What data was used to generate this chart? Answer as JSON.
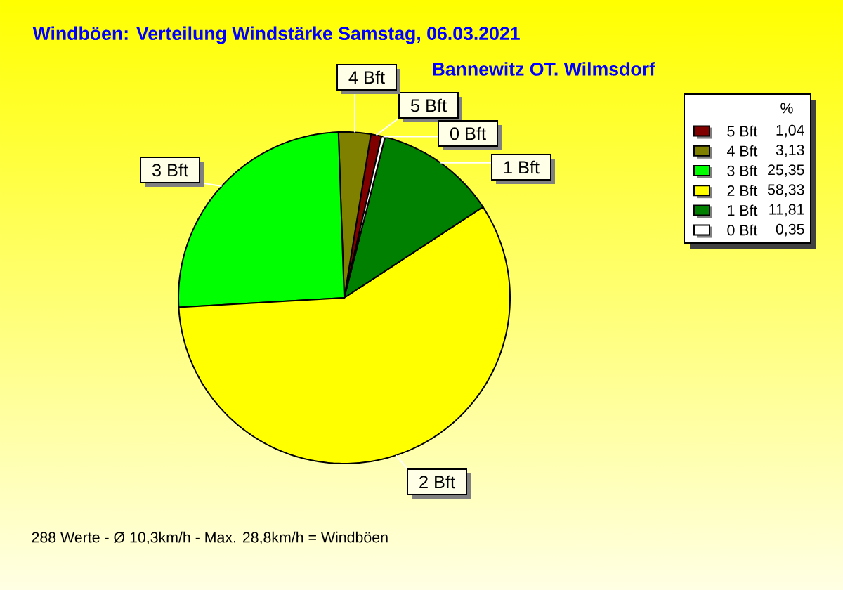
{
  "chart_data": {
    "type": "pie",
    "title": "Windböen: Verteilung Windstärke Samstag, 06.03.2021",
    "subtitle": "Bannewitz OT. Wilmsdorf",
    "legend_title": "%",
    "categories": [
      "5 Bft",
      "4 Bft",
      "3 Bft",
      "2 Bft",
      "1 Bft",
      "0 Bft"
    ],
    "values": [
      1.04,
      3.13,
      25.35,
      58.33,
      11.81,
      0.35
    ],
    "colors": [
      "#800000",
      "#808000",
      "#00ff00",
      "#ffff00",
      "#008000",
      "#ffffff"
    ],
    "value_labels": [
      "1,04",
      "3,13",
      "25,35",
      "58,33",
      "11,81",
      "0,35"
    ],
    "legend": "right",
    "annotations": [
      "288 Werte - Ø 10,3km/h - Max. 28,8km/h = Windböen"
    ]
  }
}
